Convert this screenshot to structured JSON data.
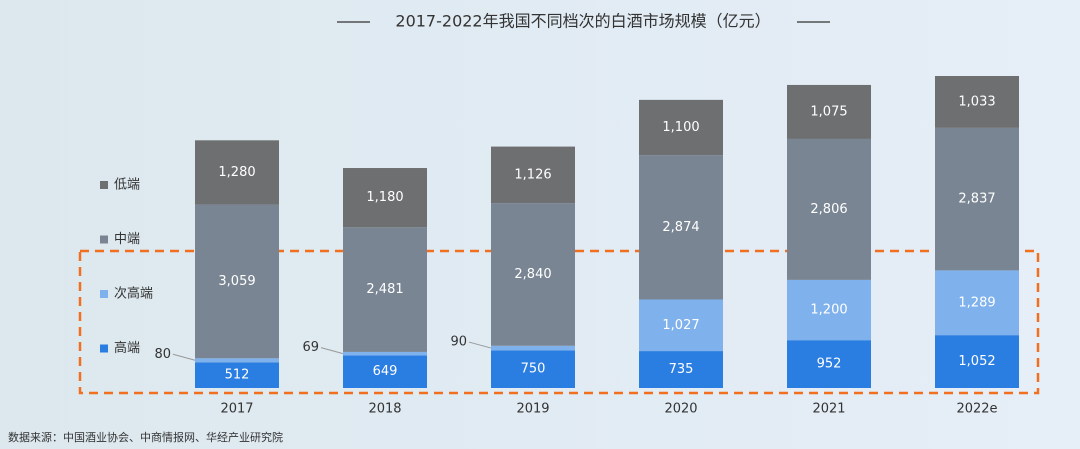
{
  "chart_data": {
    "type": "stacked_bar",
    "title": "2017-2022年我国不同档次的白酒市场规模（亿元）",
    "source": "数据来源：中国酒业协会、中商情报网、华经产业研究院",
    "categories": [
      "2017",
      "2018",
      "2019",
      "2020",
      "2021",
      "2022e"
    ],
    "series": [
      {
        "name": "高端",
        "color": "#2a7de1",
        "values": [
          512,
          649,
          750,
          735,
          952,
          1052
        ],
        "value_labels": [
          "512",
          "649",
          "750",
          "735",
          "952",
          "1,052"
        ]
      },
      {
        "name": "次高端",
        "color": "#7fb1ec",
        "values": [
          80,
          69,
          90,
          1027,
          1200,
          1289
        ],
        "value_labels": [
          "80",
          "69",
          "90",
          "1,027",
          "1,200",
          "1,289"
        ]
      },
      {
        "name": "中端",
        "color": "#798593",
        "values": [
          3059,
          2481,
          2840,
          2874,
          2806,
          2837
        ],
        "value_labels": [
          "3,059",
          "2,481",
          "2,840",
          "2,874",
          "2,806",
          "2,837"
        ]
      },
      {
        "name": "低端",
        "color": "#6e6f71",
        "values": [
          1280,
          1180,
          1126,
          1100,
          1075,
          1033
        ],
        "value_labels": [
          "1,280",
          "1,180",
          "1,126",
          "1,100",
          "1,075",
          "1,033"
        ]
      }
    ]
  }
}
